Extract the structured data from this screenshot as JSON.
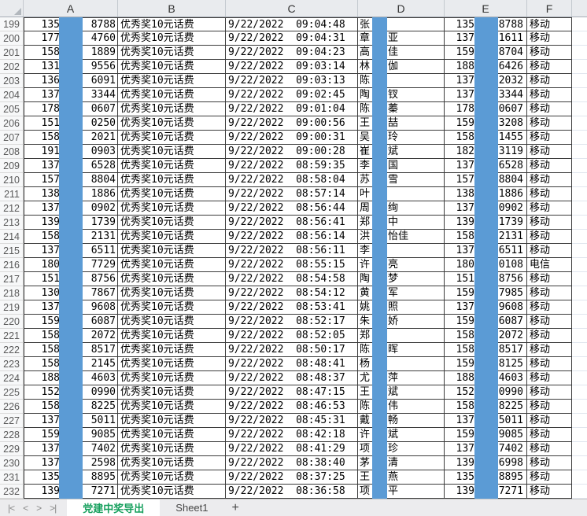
{
  "header": {
    "columns": [
      "A",
      "B",
      "C",
      "D",
      "E",
      "F"
    ]
  },
  "colors": {
    "redaction_bar": "#5b9bd5",
    "tab_active_text": "#17a05e",
    "carrier_default": "#000000"
  },
  "tabbar": {
    "nav": [
      "|<",
      "<",
      ">",
      ">|"
    ],
    "tabs": [
      {
        "label": "党建中奖导出",
        "active": true
      },
      {
        "label": "Sheet1",
        "active": false
      }
    ],
    "add_label": "+"
  },
  "rows": [
    {
      "n": "199",
      "a": [
        "135",
        "8788"
      ],
      "prize": "优秀奖10元话费",
      "t": "9/22/2022  09:04:48",
      "name": [
        "张",
        ""
      ],
      "e": [
        "135",
        "8788"
      ],
      "carrier": "移动"
    },
    {
      "n": "200",
      "a": [
        "177",
        "4760"
      ],
      "prize": "优秀奖10元话费",
      "t": "9/22/2022  09:04:31",
      "name": [
        "章",
        "亚"
      ],
      "e": [
        "137",
        "1611"
      ],
      "carrier": "移动"
    },
    {
      "n": "201",
      "a": [
        "158",
        "1889"
      ],
      "prize": "优秀奖10元话费",
      "t": "9/22/2022  09:04:23",
      "name": [
        "高",
        "佳"
      ],
      "e": [
        "159",
        "8704"
      ],
      "carrier": "移动"
    },
    {
      "n": "202",
      "a": [
        "131",
        "9556"
      ],
      "prize": "优秀奖10元话费",
      "t": "9/22/2022  09:03:14",
      "name": [
        "林",
        "伽"
      ],
      "e": [
        "188",
        "6426"
      ],
      "carrier": "移动"
    },
    {
      "n": "203",
      "a": [
        "136",
        "6091"
      ],
      "prize": "优秀奖10元话费",
      "t": "9/22/2022  09:03:13",
      "name": [
        "陈",
        ""
      ],
      "e": [
        "137",
        "2032"
      ],
      "carrier": "移动"
    },
    {
      "n": "204",
      "a": [
        "137",
        "3344"
      ],
      "prize": "优秀奖10元话费",
      "t": "9/22/2022  09:02:45",
      "name": [
        "陶",
        "钗"
      ],
      "e": [
        "137",
        "3344"
      ],
      "carrier": "移动"
    },
    {
      "n": "205",
      "a": [
        "178",
        "0607"
      ],
      "prize": "优秀奖10元话费",
      "t": "9/22/2022  09:01:04",
      "name": [
        "陈",
        "蓁"
      ],
      "e": [
        "178",
        "0607"
      ],
      "carrier": "移动"
    },
    {
      "n": "206",
      "a": [
        "151",
        "0250"
      ],
      "prize": "优秀奖10元话费",
      "t": "9/22/2022  09:00:56",
      "name": [
        "王",
        "喆"
      ],
      "e": [
        "159",
        "3208"
      ],
      "carrier": "移动"
    },
    {
      "n": "207",
      "a": [
        "158",
        "2021"
      ],
      "prize": "优秀奖10元话费",
      "t": "9/22/2022  09:00:31",
      "name": [
        "吴",
        "玲"
      ],
      "e": [
        "158",
        "1455"
      ],
      "carrier": "移动"
    },
    {
      "n": "208",
      "a": [
        "191",
        "0903"
      ],
      "prize": "优秀奖10元话费",
      "t": "9/22/2022  09:00:28",
      "name": [
        "崔",
        "斌"
      ],
      "e": [
        "182",
        "3119"
      ],
      "carrier": "移动"
    },
    {
      "n": "209",
      "a": [
        "137",
        "6528"
      ],
      "prize": "优秀奖10元话费",
      "t": "9/22/2022  08:59:35",
      "name": [
        "李",
        "国"
      ],
      "e": [
        "137",
        "6528"
      ],
      "carrier": "移动"
    },
    {
      "n": "210",
      "a": [
        "157",
        "8804"
      ],
      "prize": "优秀奖10元话费",
      "t": "9/22/2022  08:58:04",
      "name": [
        "苏",
        "雪"
      ],
      "e": [
        "157",
        "8804"
      ],
      "carrier": "移动"
    },
    {
      "n": "211",
      "a": [
        "138",
        "1886"
      ],
      "prize": "优秀奖10元话费",
      "t": "9/22/2022  08:57:14",
      "name": [
        "叶",
        ""
      ],
      "e": [
        "138",
        "1886"
      ],
      "carrier": "移动"
    },
    {
      "n": "212",
      "a": [
        "137",
        "0902"
      ],
      "prize": "优秀奖10元话费",
      "t": "9/22/2022  08:56:44",
      "name": [
        "周",
        "绚"
      ],
      "e": [
        "137",
        "0902"
      ],
      "carrier": "移动"
    },
    {
      "n": "213",
      "a": [
        "139",
        "1739"
      ],
      "prize": "优秀奖10元话费",
      "t": "9/22/2022  08:56:41",
      "name": [
        "郑",
        "中"
      ],
      "e": [
        "139",
        "1739"
      ],
      "carrier": "移动"
    },
    {
      "n": "214",
      "a": [
        "158",
        "2131"
      ],
      "prize": "优秀奖10元话费",
      "t": "9/22/2022  08:56:14",
      "name": [
        "洪",
        "怡佳"
      ],
      "e": [
        "158",
        "2131"
      ],
      "carrier": "移动"
    },
    {
      "n": "215",
      "a": [
        "137",
        "6511"
      ],
      "prize": "优秀奖10元话费",
      "t": "9/22/2022  08:56:11",
      "name": [
        "李",
        ""
      ],
      "e": [
        "137",
        "6511"
      ],
      "carrier": "移动"
    },
    {
      "n": "216",
      "a": [
        "180",
        "7729"
      ],
      "prize": "优秀奖10元话费",
      "t": "9/22/2022  08:55:15",
      "name": [
        "许",
        "亮"
      ],
      "e": [
        "180",
        "0108"
      ],
      "carrier": "电信"
    },
    {
      "n": "217",
      "a": [
        "151",
        "8756"
      ],
      "prize": "优秀奖10元话费",
      "t": "9/22/2022  08:54:58",
      "name": [
        "陶",
        "梦"
      ],
      "e": [
        "151",
        "8756"
      ],
      "carrier": "移动"
    },
    {
      "n": "218",
      "a": [
        "130",
        "7867"
      ],
      "prize": "优秀奖10元话费",
      "t": "9/22/2022  08:54:12",
      "name": [
        "黄",
        "军"
      ],
      "e": [
        "159",
        "7985"
      ],
      "carrier": "移动"
    },
    {
      "n": "219",
      "a": [
        "137",
        "9608"
      ],
      "prize": "优秀奖10元话费",
      "t": "9/22/2022  08:53:41",
      "name": [
        "姚",
        "照"
      ],
      "e": [
        "137",
        "9608"
      ],
      "carrier": "移动"
    },
    {
      "n": "220",
      "a": [
        "159",
        "6087"
      ],
      "prize": "优秀奖10元话费",
      "t": "9/22/2022  08:52:17",
      "name": [
        "朱",
        "娇"
      ],
      "e": [
        "159",
        "6087"
      ],
      "carrier": "移动"
    },
    {
      "n": "221",
      "a": [
        "158",
        "2072"
      ],
      "prize": "优秀奖10元话费",
      "t": "9/22/2022  08:52:05",
      "name": [
        "郑",
        ""
      ],
      "e": [
        "158",
        "2072"
      ],
      "carrier": "移动"
    },
    {
      "n": "222",
      "a": [
        "158",
        "8517"
      ],
      "prize": "优秀奖10元话费",
      "t": "9/22/2022  08:50:17",
      "name": [
        "陈",
        "晖"
      ],
      "e": [
        "158",
        "8517"
      ],
      "carrier": "移动"
    },
    {
      "n": "223",
      "a": [
        "158",
        "2145"
      ],
      "prize": "优秀奖10元话费",
      "t": "9/22/2022  08:48:41",
      "name": [
        "杨",
        ""
      ],
      "e": [
        "159",
        "8125"
      ],
      "carrier": "移动"
    },
    {
      "n": "224",
      "a": [
        "188",
        "4603"
      ],
      "prize": "优秀奖10元话费",
      "t": "9/22/2022  08:48:37",
      "name": [
        "尤",
        "萍"
      ],
      "e": [
        "188",
        "4603"
      ],
      "carrier": "移动"
    },
    {
      "n": "225",
      "a": [
        "152",
        "0990"
      ],
      "prize": "优秀奖10元话费",
      "t": "9/22/2022  08:47:15",
      "name": [
        "王",
        "斌"
      ],
      "e": [
        "152",
        "0990"
      ],
      "carrier": "移动"
    },
    {
      "n": "226",
      "a": [
        "158",
        "8225"
      ],
      "prize": "优秀奖10元话费",
      "t": "9/22/2022  08:46:53",
      "name": [
        "陈",
        "伟"
      ],
      "e": [
        "158",
        "8225"
      ],
      "carrier": "移动"
    },
    {
      "n": "227",
      "a": [
        "137",
        "5011"
      ],
      "prize": "优秀奖10元话费",
      "t": "9/22/2022  08:45:31",
      "name": [
        "戴",
        "畅"
      ],
      "e": [
        "137",
        "5011"
      ],
      "carrier": "移动"
    },
    {
      "n": "228",
      "a": [
        "159",
        "9085"
      ],
      "prize": "优秀奖10元话费",
      "t": "9/22/2022  08:42:18",
      "name": [
        "许",
        "斌"
      ],
      "e": [
        "159",
        "9085"
      ],
      "carrier": "移动"
    },
    {
      "n": "229",
      "a": [
        "137",
        "7402"
      ],
      "prize": "优秀奖10元话费",
      "t": "9/22/2022  08:41:29",
      "name": [
        "项",
        "珍"
      ],
      "e": [
        "137",
        "7402"
      ],
      "carrier": "移动"
    },
    {
      "n": "230",
      "a": [
        "137",
        "2598"
      ],
      "prize": "优秀奖10元话费",
      "t": "9/22/2022  08:38:40",
      "name": [
        "茅",
        "清"
      ],
      "e": [
        "139",
        "6998"
      ],
      "carrier": "移动"
    },
    {
      "n": "231",
      "a": [
        "135",
        "8895"
      ],
      "prize": "优秀奖10元话费",
      "t": "9/22/2022  08:37:25",
      "name": [
        "王",
        "燕"
      ],
      "e": [
        "135",
        "8895"
      ],
      "carrier": "移动"
    },
    {
      "n": "232",
      "a": [
        "139",
        "7271"
      ],
      "prize": "优秀奖10元话费",
      "t": "9/22/2022  08:36:58",
      "name": [
        "项",
        "平"
      ],
      "e": [
        "139",
        "7271"
      ],
      "carrier": "移动"
    }
  ]
}
